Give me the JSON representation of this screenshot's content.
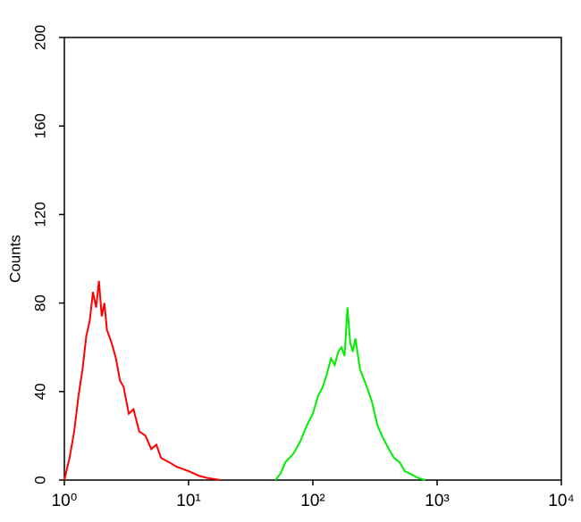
{
  "chart_data": {
    "type": "line",
    "y_label": "Counts",
    "xlog": true,
    "xlim": [
      1,
      10000
    ],
    "xticks": [
      {
        "value": 1,
        "label": "10⁰"
      },
      {
        "value": 10,
        "label": "10¹"
      },
      {
        "value": 100,
        "label": "10²"
      },
      {
        "value": 1000,
        "label": "10³"
      },
      {
        "value": 10000,
        "label": "10⁴"
      }
    ],
    "ylim": [
      0,
      200
    ],
    "yticks": [
      0,
      40,
      80,
      120,
      160,
      200
    ],
    "series": [
      {
        "color": "#ff0000",
        "x": [
          1.0,
          1.1,
          1.2,
          1.3,
          1.4,
          1.5,
          1.6,
          1.7,
          1.8,
          1.9,
          2.0,
          2.1,
          2.2,
          2.4,
          2.6,
          2.8,
          3.0,
          3.3,
          3.6,
          4.0,
          4.5,
          5.0,
          5.5,
          6.0,
          7.0,
          8.0,
          9.0,
          10,
          11,
          12,
          14,
          16,
          18
        ],
        "values": [
          0,
          10,
          22,
          38,
          50,
          65,
          72,
          85,
          78,
          90,
          74,
          80,
          68,
          62,
          55,
          45,
          42,
          30,
          32,
          22,
          20,
          14,
          16,
          10,
          8,
          6,
          5,
          4,
          3,
          2,
          1,
          0.5,
          0
        ]
      },
      {
        "color": "#00ee00",
        "x": [
          50,
          55,
          60,
          70,
          80,
          90,
          100,
          110,
          120,
          130,
          140,
          150,
          160,
          170,
          180,
          190,
          200,
          210,
          220,
          240,
          260,
          280,
          300,
          330,
          360,
          400,
          450,
          500,
          550,
          600,
          700,
          800
        ],
        "values": [
          0,
          3,
          8,
          12,
          18,
          25,
          30,
          38,
          42,
          48,
          55,
          52,
          58,
          60,
          56,
          78,
          62,
          58,
          64,
          50,
          45,
          40,
          35,
          25,
          20,
          15,
          10,
          8,
          4,
          3,
          1,
          0
        ]
      }
    ]
  }
}
